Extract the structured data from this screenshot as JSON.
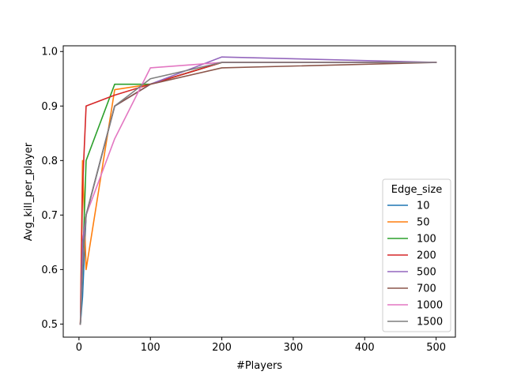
{
  "chart_data": {
    "type": "line",
    "title": "",
    "xlabel": "#Players",
    "ylabel": "Avg_kill_per_player",
    "xlim": [
      -22,
      527
    ],
    "ylim": [
      0.476,
      1.0105
    ],
    "xticks": [
      0,
      100,
      200,
      300,
      400,
      500
    ],
    "xtick_labels": [
      "0",
      "100",
      "200",
      "300",
      "400",
      "500"
    ],
    "yticks": [
      0.5,
      0.6,
      0.7,
      0.8,
      0.9,
      1.0
    ],
    "ytick_labels": [
      "0.5",
      "0.6",
      "0.7",
      "0.8",
      "0.9",
      "1.0"
    ],
    "grid": false,
    "legend": {
      "title": "Edge_size",
      "placement": "lower right"
    },
    "series": [
      {
        "name": "10",
        "color": "#1f77b4",
        "x": [
          2,
          5,
          10,
          50,
          100,
          200,
          500
        ],
        "y": [
          0.5,
          0.55,
          0.7,
          0.9,
          0.94,
          0.98,
          0.98
        ]
      },
      {
        "name": "50",
        "color": "#ff7f0e",
        "x": [
          2,
          5,
          10,
          50,
          100,
          200,
          500
        ],
        "y": [
          0.5,
          0.8,
          0.6,
          0.93,
          0.94,
          0.98,
          0.98
        ]
      },
      {
        "name": "100",
        "color": "#2ca02c",
        "x": [
          2,
          5,
          10,
          50,
          100,
          200,
          500
        ],
        "y": [
          0.5,
          0.6,
          0.8,
          0.94,
          0.94,
          0.98,
          0.98
        ]
      },
      {
        "name": "200",
        "color": "#d62728",
        "x": [
          2,
          5,
          10,
          50,
          100,
          200,
          500
        ],
        "y": [
          0.5,
          0.75,
          0.9,
          0.92,
          0.94,
          0.98,
          0.98
        ]
      },
      {
        "name": "500",
        "color": "#9467bd",
        "x": [
          2,
          5,
          10,
          50,
          100,
          200,
          500
        ],
        "y": [
          0.5,
          0.65,
          0.7,
          0.9,
          0.94,
          0.99,
          0.98
        ]
      },
      {
        "name": "700",
        "color": "#8c564b",
        "x": [
          2,
          5,
          10,
          50,
          100,
          200,
          500
        ],
        "y": [
          0.5,
          0.6,
          0.7,
          0.9,
          0.94,
          0.97,
          0.98
        ]
      },
      {
        "name": "1000",
        "color": "#e377c2",
        "x": [
          2,
          5,
          10,
          50,
          100,
          200,
          500
        ],
        "y": [
          0.5,
          0.6,
          0.7,
          0.84,
          0.97,
          0.98,
          0.98
        ]
      },
      {
        "name": "1500",
        "color": "#7f7f7f",
        "x": [
          2,
          5,
          10,
          50,
          100,
          200,
          500
        ],
        "y": [
          0.5,
          0.6,
          0.7,
          0.9,
          0.95,
          0.98,
          0.98
        ]
      }
    ]
  }
}
